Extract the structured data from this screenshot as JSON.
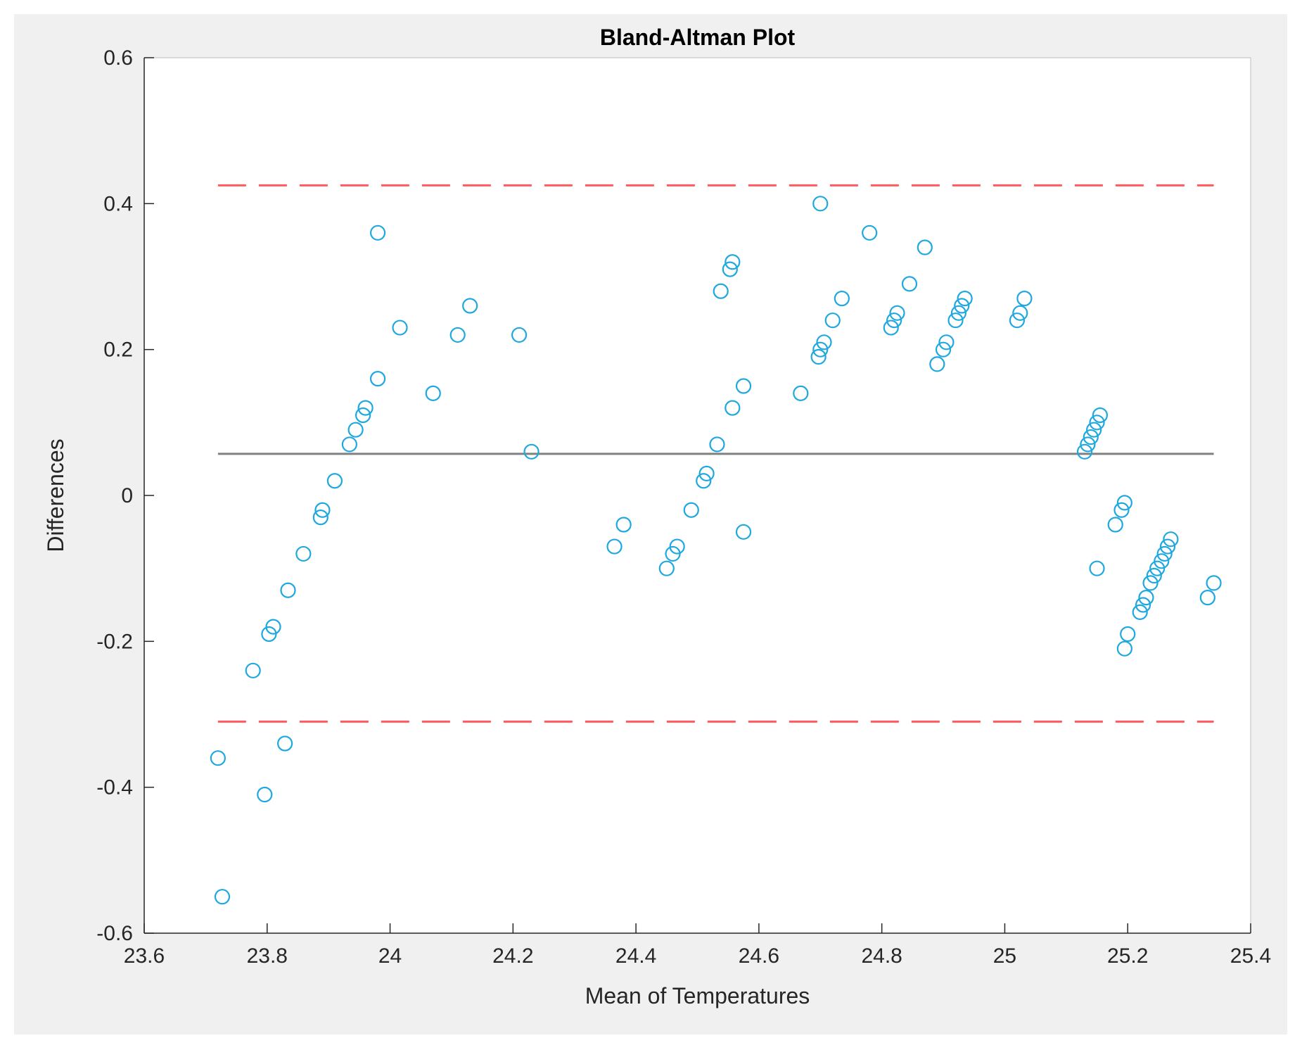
{
  "chart_data": {
    "type": "scatter",
    "title": "Bland-Altman Plot",
    "xlabel": "Mean of Temperatures",
    "ylabel": "Differences",
    "xlim": [
      23.6,
      25.4
    ],
    "ylim": [
      -0.6,
      0.6
    ],
    "xticks": [
      "23.6",
      "23.8",
      "24",
      "24.2",
      "24.4",
      "24.6",
      "24.8",
      "25",
      "25.2",
      "25.4"
    ],
    "yticks": [
      "-0.6",
      "-0.4",
      "-0.2",
      "0",
      "0.2",
      "0.4",
      "0.6"
    ],
    "grid": false,
    "colors": {
      "points": "#1fa8e0",
      "mean_line": "#808080",
      "limit_lines": "#ff5a5f",
      "figure_bg": "#f0f0f0",
      "axes_bg": "#ffffff"
    },
    "mean_difference": 0.057,
    "upper_limit": 0.425,
    "lower_limit": -0.31,
    "reference_x_range": [
      23.72,
      25.34
    ],
    "points": [
      {
        "x": 23.72,
        "y": -0.36
      },
      {
        "x": 23.727,
        "y": -0.55
      },
      {
        "x": 23.777,
        "y": -0.24
      },
      {
        "x": 23.796,
        "y": -0.41
      },
      {
        "x": 23.803,
        "y": -0.19
      },
      {
        "x": 23.81,
        "y": -0.18
      },
      {
        "x": 23.829,
        "y": -0.34
      },
      {
        "x": 23.834,
        "y": -0.13
      },
      {
        "x": 23.859,
        "y": -0.08
      },
      {
        "x": 23.887,
        "y": -0.03
      },
      {
        "x": 23.89,
        "y": -0.02
      },
      {
        "x": 23.91,
        "y": 0.02
      },
      {
        "x": 23.934,
        "y": 0.07
      },
      {
        "x": 23.944,
        "y": 0.09
      },
      {
        "x": 23.956,
        "y": 0.11
      },
      {
        "x": 23.96,
        "y": 0.12
      },
      {
        "x": 23.98,
        "y": 0.36
      },
      {
        "x": 23.98,
        "y": 0.16
      },
      {
        "x": 24.016,
        "y": 0.23
      },
      {
        "x": 24.07,
        "y": 0.14
      },
      {
        "x": 24.11,
        "y": 0.22
      },
      {
        "x": 24.13,
        "y": 0.26
      },
      {
        "x": 24.21,
        "y": 0.22
      },
      {
        "x": 24.23,
        "y": 0.06
      },
      {
        "x": 24.365,
        "y": -0.07
      },
      {
        "x": 24.38,
        "y": -0.04
      },
      {
        "x": 24.45,
        "y": -0.1
      },
      {
        "x": 24.46,
        "y": -0.08
      },
      {
        "x": 24.467,
        "y": -0.07
      },
      {
        "x": 24.49,
        "y": -0.02
      },
      {
        "x": 24.51,
        "y": 0.02
      },
      {
        "x": 24.515,
        "y": 0.03
      },
      {
        "x": 24.532,
        "y": 0.07
      },
      {
        "x": 24.538,
        "y": 0.28
      },
      {
        "x": 24.553,
        "y": 0.31
      },
      {
        "x": 24.557,
        "y": 0.32
      },
      {
        "x": 24.557,
        "y": 0.12
      },
      {
        "x": 24.575,
        "y": 0.15
      },
      {
        "x": 24.575,
        "y": -0.05
      },
      {
        "x": 24.668,
        "y": 0.14
      },
      {
        "x": 24.697,
        "y": 0.19
      },
      {
        "x": 24.7,
        "y": 0.2
      },
      {
        "x": 24.706,
        "y": 0.21
      },
      {
        "x": 24.7,
        "y": 0.4
      },
      {
        "x": 24.72,
        "y": 0.24
      },
      {
        "x": 24.735,
        "y": 0.27
      },
      {
        "x": 24.78,
        "y": 0.36
      },
      {
        "x": 24.815,
        "y": 0.23
      },
      {
        "x": 24.82,
        "y": 0.24
      },
      {
        "x": 24.825,
        "y": 0.25
      },
      {
        "x": 24.845,
        "y": 0.29
      },
      {
        "x": 24.87,
        "y": 0.34
      },
      {
        "x": 24.89,
        "y": 0.18
      },
      {
        "x": 24.9,
        "y": 0.2
      },
      {
        "x": 24.905,
        "y": 0.21
      },
      {
        "x": 24.92,
        "y": 0.24
      },
      {
        "x": 24.925,
        "y": 0.25
      },
      {
        "x": 24.93,
        "y": 0.26
      },
      {
        "x": 24.935,
        "y": 0.27
      },
      {
        "x": 25.02,
        "y": 0.24
      },
      {
        "x": 25.025,
        "y": 0.25
      },
      {
        "x": 25.032,
        "y": 0.27
      },
      {
        "x": 25.13,
        "y": 0.06
      },
      {
        "x": 25.135,
        "y": 0.07
      },
      {
        "x": 25.14,
        "y": 0.08
      },
      {
        "x": 25.145,
        "y": 0.09
      },
      {
        "x": 25.15,
        "y": 0.1
      },
      {
        "x": 25.155,
        "y": 0.11
      },
      {
        "x": 25.15,
        "y": -0.1
      },
      {
        "x": 25.18,
        "y": -0.04
      },
      {
        "x": 25.19,
        "y": -0.02
      },
      {
        "x": 25.195,
        "y": -0.01
      },
      {
        "x": 25.195,
        "y": -0.21
      },
      {
        "x": 25.2,
        "y": -0.19
      },
      {
        "x": 25.22,
        "y": -0.16
      },
      {
        "x": 25.225,
        "y": -0.15
      },
      {
        "x": 25.23,
        "y": -0.14
      },
      {
        "x": 25.237,
        "y": -0.12
      },
      {
        "x": 25.243,
        "y": -0.11
      },
      {
        "x": 25.248,
        "y": -0.1
      },
      {
        "x": 25.255,
        "y": -0.09
      },
      {
        "x": 25.26,
        "y": -0.08
      },
      {
        "x": 25.265,
        "y": -0.07
      },
      {
        "x": 25.27,
        "y": -0.06
      },
      {
        "x": 25.33,
        "y": -0.14
      },
      {
        "x": 25.34,
        "y": -0.12
      }
    ]
  }
}
